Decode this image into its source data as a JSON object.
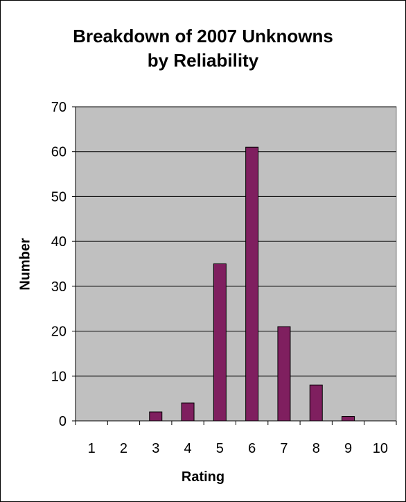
{
  "chart_data": {
    "type": "bar",
    "title_lines": [
      "Breakdown of 2007 Unknowns",
      "by Reliability"
    ],
    "xlabel": "Rating",
    "ylabel": "Number",
    "categories": [
      "1",
      "2",
      "3",
      "4",
      "5",
      "6",
      "7",
      "8",
      "9",
      "10"
    ],
    "values": [
      0,
      0,
      2,
      4,
      35,
      61,
      21,
      8,
      1,
      0
    ],
    "ylim": [
      0,
      70
    ],
    "yticks": [
      0,
      10,
      20,
      30,
      40,
      50,
      60,
      70
    ],
    "grid": true,
    "legend": "none",
    "colors": {
      "bar": "#7F1F5F",
      "plot_background": "#C0C0C0",
      "gridline": "#000000"
    }
  }
}
